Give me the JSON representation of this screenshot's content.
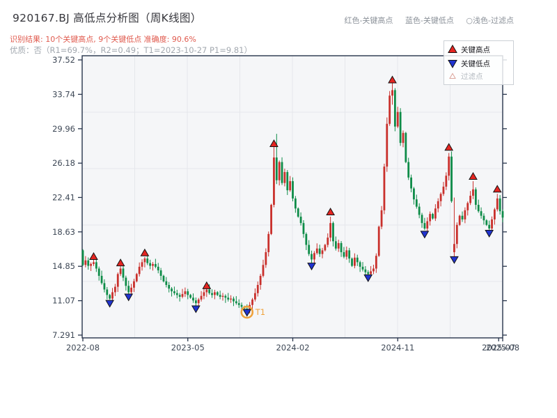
{
  "header": {
    "title": "920167.BJ 高低点分析图（周K线图）",
    "result_line": "识别结果: 10个关键高点, 9个关键低点  准确度: 90.6%",
    "quality_line": "优质：否（R1=69.7%，R2=0.49；T1=2023-10-27 P1=9.81）",
    "legend_note_high": "红色-关键高点",
    "legend_note_low": "蓝色-关键低点",
    "legend_note_filter": "○浅色-过滤点"
  },
  "legend": {
    "high_label": "关键高点",
    "low_label": "关键低点",
    "filtered_label": "过滤点"
  },
  "chart_data": {
    "type": "candlestick",
    "title": "920167.BJ 高低点分析图（周K线图）",
    "period": "weekly",
    "x_axis": {
      "tick_labels": [
        "2022-08",
        "2023-05",
        "2024-02",
        "2024-11",
        "2025-07",
        "2025-08"
      ],
      "tick_weeks": [
        0,
        39,
        78,
        117,
        154.5,
        156
      ]
    },
    "y_axis": {
      "ticks": [
        37.52,
        33.74,
        29.96,
        26.18,
        22.41,
        18.63,
        14.85,
        11.07,
        7.291
      ],
      "tick_labels": [
        "37.52",
        "33.74",
        "29.96",
        "26.18",
        "22.41",
        "18.63",
        "14.85",
        "11.07",
        "7.291"
      ]
    },
    "closes": [
      15.0,
      15.5,
      14.9,
      15.1,
      15.3,
      14.6,
      13.8,
      13.0,
      12.3,
      11.7,
      11.3,
      12.0,
      12.6,
      14.0,
      14.6,
      13.6,
      12.7,
      12.0,
      12.5,
      13.2,
      14.0,
      14.8,
      15.3,
      15.7,
      15.2,
      14.9,
      15.1,
      14.8,
      14.4,
      13.8,
      13.2,
      12.8,
      12.4,
      12.1,
      11.9,
      11.7,
      11.5,
      11.8,
      12.1,
      11.7,
      11.4,
      11.1,
      10.8,
      11.2,
      11.6,
      12.0,
      12.3,
      11.9,
      11.7,
      12.0,
      11.7,
      11.5,
      11.6,
      11.4,
      11.2,
      11.3,
      11.0,
      10.8,
      10.6,
      10.4,
      10.2,
      10.1,
      10.6,
      11.2,
      11.9,
      12.8,
      13.8,
      15.0,
      16.4,
      18.4,
      21.6,
      26.8,
      24.3,
      26.3,
      24.0,
      25.2,
      23.2,
      24.2,
      22.3,
      21.2,
      20.3,
      19.6,
      18.4,
      17.2,
      16.2,
      15.6,
      16.3,
      16.8,
      16.2,
      16.6,
      17.2,
      18.0,
      19.6,
      17.6,
      16.8,
      17.4,
      16.4,
      15.9,
      16.6,
      15.7,
      14.9,
      15.8,
      15.3,
      14.8,
      14.5,
      14.2,
      14.0,
      14.3,
      14.6,
      16.0,
      19.2,
      21.0,
      25.8,
      30.5,
      33.6,
      34.2,
      30.2,
      31.8,
      28.4,
      29.5,
      26.3,
      24.6,
      23.4,
      22.2,
      21.4,
      20.5,
      19.6,
      19.0,
      19.8,
      20.6,
      20.1,
      21.2,
      22.0,
      22.8,
      23.6,
      24.8,
      26.9,
      22.0,
      17.3,
      19.4,
      20.4,
      20.0,
      21.0,
      21.8,
      22.6,
      23.3,
      21.6,
      20.9,
      20.4,
      19.9,
      19.4,
      19.0,
      20.0,
      21.1,
      22.3,
      20.9,
      20.2
    ],
    "overrides": {
      "0": {
        "o": 16.6
      },
      "61": {
        "l": 9.95
      },
      "71": {
        "h": 28.0
      },
      "72": {
        "h": 29.4
      },
      "92": {
        "h": 20.3
      },
      "113": {
        "h": 31.2
      },
      "114": {
        "h": 34.1
      },
      "115": {
        "h": 35.0,
        "l": 32.6
      },
      "136": {
        "h": 27.3
      },
      "138": {
        "o": 16.4,
        "c": 17.3,
        "h": 22.4,
        "l": 15.9
      },
      "145": {
        "h": 24.2
      },
      "154": {
        "h": 22.8
      }
    },
    "key_highs": [
      {
        "week": 4,
        "price": 15.9
      },
      {
        "week": 14,
        "price": 15.2
      },
      {
        "week": 23,
        "price": 16.3
      },
      {
        "week": 46,
        "price": 12.7
      },
      {
        "week": 71,
        "price": 28.3
      },
      {
        "week": 92,
        "price": 20.8
      },
      {
        "week": 115,
        "price": 35.3
      },
      {
        "week": 136,
        "price": 27.9
      },
      {
        "week": 145,
        "price": 24.7
      },
      {
        "week": 154,
        "price": 23.3
      }
    ],
    "key_lows": [
      {
        "week": 10,
        "price": 10.8
      },
      {
        "week": 17,
        "price": 11.5
      },
      {
        "week": 42,
        "price": 10.2
      },
      {
        "week": 61,
        "price": 9.81
      },
      {
        "week": 85,
        "price": 14.9
      },
      {
        "week": 106,
        "price": 13.6
      },
      {
        "week": 127,
        "price": 18.4
      },
      {
        "week": 138,
        "price": 15.6
      },
      {
        "week": 151,
        "price": 18.5
      }
    ],
    "t1_annotation": {
      "week": 61,
      "price": 9.81,
      "label": "T1",
      "date": "2023-10-27"
    },
    "colors": {
      "up_candle": "#c9302c",
      "down_candle": "#0e8c48",
      "high_marker": "#e52521",
      "low_marker": "#2033cf",
      "marker_edge": "#141414",
      "filtered_marker_edge": "#dba49b",
      "t1_orange": "#efa23b",
      "axis": "#26334a",
      "grid": "#e5e7eb",
      "plot_bg": "#f5f6f8",
      "tick_text": "#3e4856",
      "legend_text": "#17171c",
      "legend_muted": "#b4bac0"
    }
  }
}
